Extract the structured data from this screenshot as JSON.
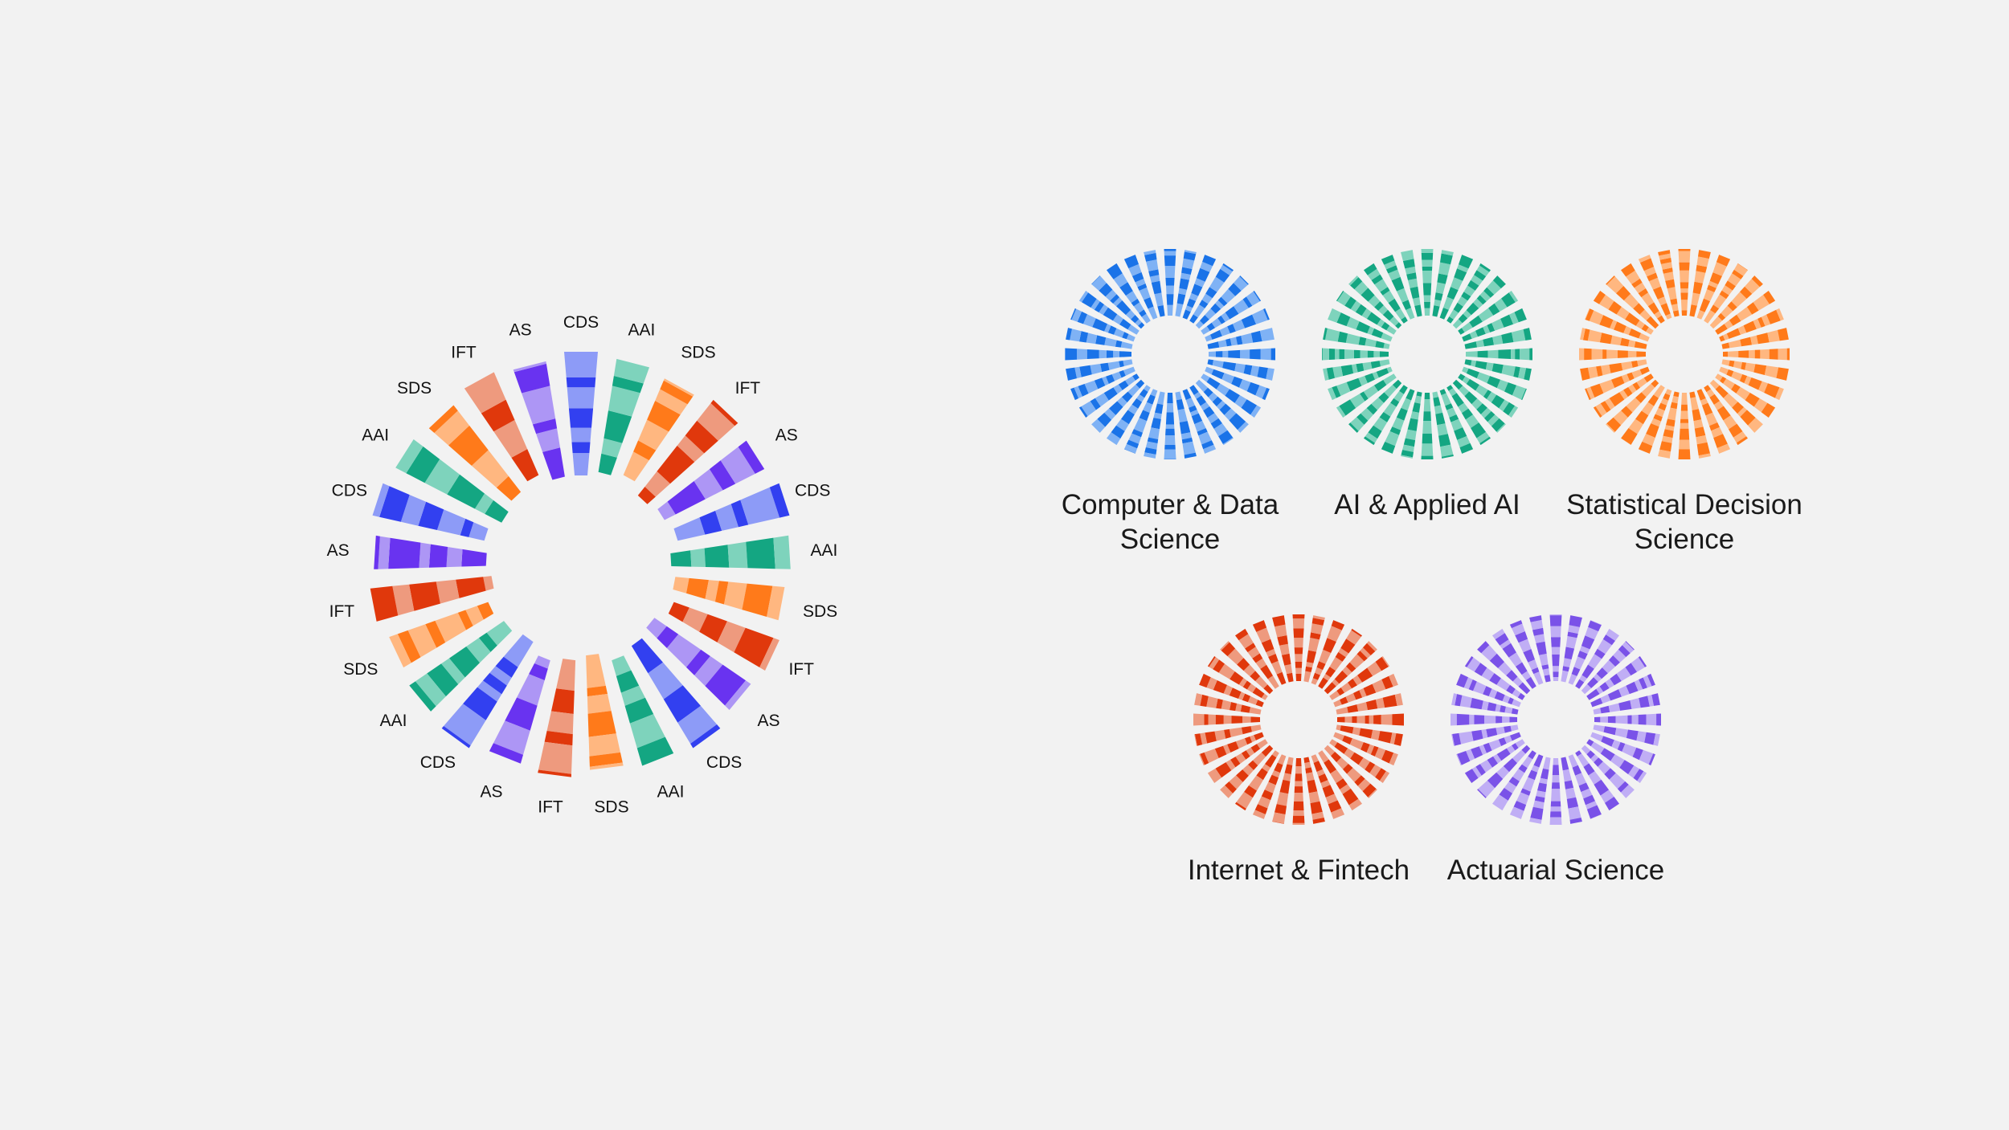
{
  "main_wheel": {
    "spokes": [
      {
        "label": "CDS",
        "field": "cds"
      },
      {
        "label": "AAI",
        "field": "aai"
      },
      {
        "label": "SDS",
        "field": "sds"
      },
      {
        "label": "IFT",
        "field": "ift"
      },
      {
        "label": "AS",
        "field": "as"
      },
      {
        "label": "CDS",
        "field": "cds"
      },
      {
        "label": "AAI",
        "field": "aai"
      },
      {
        "label": "SDS",
        "field": "sds"
      },
      {
        "label": "IFT",
        "field": "ift"
      },
      {
        "label": "AS",
        "field": "as"
      },
      {
        "label": "CDS",
        "field": "cds"
      },
      {
        "label": "AAI",
        "field": "aai"
      },
      {
        "label": "SDS",
        "field": "sds"
      },
      {
        "label": "IFT",
        "field": "ift"
      },
      {
        "label": "AS",
        "field": "as"
      },
      {
        "label": "CDS",
        "field": "cds"
      },
      {
        "label": "AAI",
        "field": "aai"
      },
      {
        "label": "SDS",
        "field": "sds"
      },
      {
        "label": "IFT",
        "field": "ift"
      },
      {
        "label": "AS",
        "field": "as"
      },
      {
        "label": "CDS",
        "field": "cds"
      },
      {
        "label": "AAI",
        "field": "aai"
      },
      {
        "label": "SDS",
        "field": "sds"
      },
      {
        "label": "IFT",
        "field": "ift"
      },
      {
        "label": "AS",
        "field": "as"
      }
    ]
  },
  "fields": {
    "cds": {
      "name": "Computer & Data Science",
      "dark": "#3240f0",
      "light": "#8d9bf7",
      "mini_dark": "#1a73e8",
      "mini_light": "#7fb2f5"
    },
    "aai": {
      "name": "AI & Applied AI",
      "dark": "#14a682",
      "light": "#7ed3bc",
      "mini_dark": "#14a682",
      "mini_light": "#7ed3bc"
    },
    "sds": {
      "name": "Statistical Decision Science",
      "dark": "#ff7a1a",
      "light": "#ffb780",
      "mini_dark": "#ff7a1a",
      "mini_light": "#ffb780"
    },
    "ift": {
      "name": "Internet & Fintech",
      "dark": "#e0380c",
      "light": "#ee9a7e",
      "mini_dark": "#e0380c",
      "mini_light": "#ee9a7e"
    },
    "as": {
      "name": "Actuarial Science",
      "dark": "#6933f0",
      "light": "#ad96f5",
      "mini_dark": "#7a52e8",
      "mini_light": "#c0aef5"
    }
  },
  "legend": [
    {
      "field": "cds",
      "line1": "Computer & Data",
      "line2": "Science"
    },
    {
      "field": "aai",
      "line1": "AI & Applied AI",
      "line2": ""
    },
    {
      "field": "sds",
      "line1": "Statistical Decision",
      "line2": "Science"
    },
    {
      "field": "ift",
      "line1": "Internet & Fintech",
      "line2": ""
    },
    {
      "field": "as",
      "line1": "Actuarial Science",
      "line2": ""
    }
  ]
}
